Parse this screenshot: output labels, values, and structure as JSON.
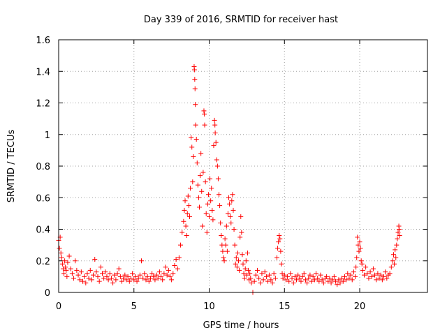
{
  "chart_data": {
    "type": "scatter",
    "title": "Day 339 of 2016, SRMTID for receiver hast",
    "xlabel": "GPS time / hours",
    "ylabel": "SRMTID / TECUs",
    "xlim": [
      0,
      24.5
    ],
    "ylim": [
      0,
      1.6
    ],
    "xticks": [
      0,
      5,
      10,
      15,
      20
    ],
    "xtick_labels": [
      "0",
      "5",
      "10",
      "15",
      "20"
    ],
    "yticks": [
      0,
      0.2,
      0.4,
      0.6,
      0.8,
      1.0,
      1.2,
      1.4,
      1.6
    ],
    "ytick_labels": [
      "0",
      "0.2",
      "0.4",
      "0.6",
      "0.8",
      "1",
      "1.2",
      "1.4",
      "1.6"
    ],
    "grid": true,
    "marker": "plus",
    "color": "#ff0000",
    "series": [
      {
        "name": "SRMTID",
        "points": [
          [
            0.0,
            0.33
          ],
          [
            0.05,
            0.28
          ],
          [
            0.1,
            0.35
          ],
          [
            0.15,
            0.25
          ],
          [
            0.2,
            0.22
          ],
          [
            0.25,
            0.18
          ],
          [
            0.3,
            0.15
          ],
          [
            0.35,
            0.12
          ],
          [
            0.4,
            0.2
          ],
          [
            0.45,
            0.16
          ],
          [
            0.5,
            0.14
          ],
          [
            0.55,
            0.1
          ],
          [
            0.6,
            0.19
          ],
          [
            0.7,
            0.23
          ],
          [
            0.8,
            0.15
          ],
          [
            0.9,
            0.12
          ],
          [
            1.0,
            0.09
          ],
          [
            1.1,
            0.2
          ],
          [
            1.2,
            0.14
          ],
          [
            1.3,
            0.11
          ],
          [
            1.4,
            0.08
          ],
          [
            1.5,
            0.13
          ],
          [
            1.6,
            0.07
          ],
          [
            1.7,
            0.1
          ],
          [
            1.8,
            0.06
          ],
          [
            1.9,
            0.12
          ],
          [
            2.0,
            0.09
          ],
          [
            2.1,
            0.14
          ],
          [
            2.2,
            0.08
          ],
          [
            2.3,
            0.11
          ],
          [
            2.4,
            0.21
          ],
          [
            2.5,
            0.13
          ],
          [
            2.6,
            0.1
          ],
          [
            2.7,
            0.07
          ],
          [
            2.8,
            0.16
          ],
          [
            2.9,
            0.12
          ],
          [
            3.0,
            0.09
          ],
          [
            3.1,
            0.13
          ],
          [
            3.2,
            0.1
          ],
          [
            3.3,
            0.08
          ],
          [
            3.4,
            0.12
          ],
          [
            3.5,
            0.09
          ],
          [
            3.6,
            0.06
          ],
          [
            3.7,
            0.11
          ],
          [
            3.8,
            0.08
          ],
          [
            3.9,
            0.12
          ],
          [
            4.0,
            0.15
          ],
          [
            4.1,
            0.1
          ],
          [
            4.2,
            0.07
          ],
          [
            4.3,
            0.09
          ],
          [
            4.4,
            0.11
          ],
          [
            4.5,
            0.08
          ],
          [
            4.6,
            0.1
          ],
          [
            4.7,
            0.07
          ],
          [
            4.8,
            0.09
          ],
          [
            4.9,
            0.12
          ],
          [
            5.0,
            0.08
          ],
          [
            5.1,
            0.1
          ],
          [
            5.2,
            0.07
          ],
          [
            5.3,
            0.09
          ],
          [
            5.4,
            0.11
          ],
          [
            5.5,
            0.2
          ],
          [
            5.6,
            0.09
          ],
          [
            5.7,
            0.12
          ],
          [
            5.8,
            0.08
          ],
          [
            5.9,
            0.1
          ],
          [
            6.0,
            0.07
          ],
          [
            6.1,
            0.09
          ],
          [
            6.2,
            0.12
          ],
          [
            6.3,
            0.1
          ],
          [
            6.4,
            0.08
          ],
          [
            6.5,
            0.11
          ],
          [
            6.6,
            0.09
          ],
          [
            6.7,
            0.13
          ],
          [
            6.8,
            0.1
          ],
          [
            6.9,
            0.08
          ],
          [
            7.0,
            0.12
          ],
          [
            7.1,
            0.16
          ],
          [
            7.2,
            0.11
          ],
          [
            7.3,
            0.14
          ],
          [
            7.4,
            0.1
          ],
          [
            7.5,
            0.08
          ],
          [
            7.6,
            0.12
          ],
          [
            7.7,
            0.17
          ],
          [
            7.8,
            0.21
          ],
          [
            7.9,
            0.15
          ],
          [
            8.0,
            0.22
          ],
          [
            8.1,
            0.3
          ],
          [
            8.2,
            0.38
          ],
          [
            8.3,
            0.45
          ],
          [
            8.35,
            0.52
          ],
          [
            8.4,
            0.58
          ],
          [
            8.45,
            0.42
          ],
          [
            8.5,
            0.36
          ],
          [
            8.55,
            0.5
          ],
          [
            8.6,
            0.61
          ],
          [
            8.65,
            0.55
          ],
          [
            8.7,
            0.48
          ],
          [
            8.75,
            0.66
          ],
          [
            8.8,
            0.98
          ],
          [
            8.85,
            0.92
          ],
          [
            8.9,
            0.7
          ],
          [
            8.95,
            0.86
          ],
          [
            9.0,
            1.43
          ],
          [
            9.02,
            1.41
          ],
          [
            9.04,
            1.35
          ],
          [
            9.06,
            1.29
          ],
          [
            9.08,
            1.19
          ],
          [
            9.1,
            1.06
          ],
          [
            9.15,
            0.97
          ],
          [
            9.2,
            0.82
          ],
          [
            9.25,
            0.68
          ],
          [
            9.3,
            0.6
          ],
          [
            9.35,
            0.54
          ],
          [
            9.4,
            0.74
          ],
          [
            9.45,
            0.88
          ],
          [
            9.5,
            0.64
          ],
          [
            9.55,
            0.42
          ],
          [
            9.6,
            0.76
          ],
          [
            9.65,
            1.15
          ],
          [
            9.68,
            1.13
          ],
          [
            9.7,
            1.06
          ],
          [
            9.75,
            0.7
          ],
          [
            9.8,
            0.5
          ],
          [
            9.85,
            0.38
          ],
          [
            9.9,
            0.56
          ],
          [
            9.95,
            0.62
          ],
          [
            10.0,
            0.48
          ],
          [
            10.05,
            0.72
          ],
          [
            10.1,
            0.58
          ],
          [
            10.15,
            0.66
          ],
          [
            10.2,
            0.52
          ],
          [
            10.25,
            0.46
          ],
          [
            10.3,
            0.93
          ],
          [
            10.35,
            1.09
          ],
          [
            10.38,
            1.06
          ],
          [
            10.4,
            1.01
          ],
          [
            10.45,
            0.95
          ],
          [
            10.5,
            0.84
          ],
          [
            10.55,
            0.8
          ],
          [
            10.6,
            0.72
          ],
          [
            10.65,
            0.62
          ],
          [
            10.7,
            0.55
          ],
          [
            10.75,
            0.44
          ],
          [
            10.8,
            0.36
          ],
          [
            10.85,
            0.3
          ],
          [
            10.9,
            0.26
          ],
          [
            10.95,
            0.22
          ],
          [
            11.0,
            0.2
          ],
          [
            11.05,
            0.34
          ],
          [
            11.1,
            0.3
          ],
          [
            11.15,
            0.42
          ],
          [
            11.2,
            0.26
          ],
          [
            11.25,
            0.5
          ],
          [
            11.3,
            0.6
          ],
          [
            11.35,
            0.56
          ],
          [
            11.4,
            0.48
          ],
          [
            11.45,
            0.44
          ],
          [
            11.5,
            0.58
          ],
          [
            11.55,
            0.62
          ],
          [
            11.6,
            0.52
          ],
          [
            11.65,
            0.4
          ],
          [
            11.7,
            0.3
          ],
          [
            11.75,
            0.18
          ],
          [
            11.8,
            0.22
          ],
          [
            11.85,
            0.16
          ],
          [
            11.9,
            0.25
          ],
          [
            11.95,
            0.2
          ],
          [
            12.0,
            0.14
          ],
          [
            12.05,
            0.35
          ],
          [
            12.1,
            0.48
          ],
          [
            12.15,
            0.38
          ],
          [
            12.2,
            0.24
          ],
          [
            12.25,
            0.18
          ],
          [
            12.3,
            0.12
          ],
          [
            12.35,
            0.09
          ],
          [
            12.4,
            0.15
          ],
          [
            12.45,
            0.2
          ],
          [
            12.5,
            0.11
          ],
          [
            12.55,
            0.25
          ],
          [
            12.6,
            0.14
          ],
          [
            12.65,
            0.08
          ],
          [
            12.7,
            0.12
          ],
          [
            12.75,
            0.09
          ],
          [
            12.8,
            0.06
          ],
          [
            12.9,
            0.0
          ],
          [
            13.0,
            0.07
          ],
          [
            13.1,
            0.11
          ],
          [
            13.2,
            0.14
          ],
          [
            13.3,
            0.09
          ],
          [
            13.4,
            0.06
          ],
          [
            13.5,
            0.12
          ],
          [
            13.6,
            0.08
          ],
          [
            13.7,
            0.13
          ],
          [
            13.8,
            0.1
          ],
          [
            13.9,
            0.07
          ],
          [
            14.0,
            0.11
          ],
          [
            14.1,
            0.08
          ],
          [
            14.2,
            0.06
          ],
          [
            14.3,
            0.12
          ],
          [
            14.4,
            0.09
          ],
          [
            14.5,
            0.22
          ],
          [
            14.55,
            0.28
          ],
          [
            14.6,
            0.32
          ],
          [
            14.65,
            0.36
          ],
          [
            14.7,
            0.34
          ],
          [
            14.75,
            0.26
          ],
          [
            14.8,
            0.18
          ],
          [
            14.85,
            0.12
          ],
          [
            14.9,
            0.09
          ],
          [
            15.0,
            0.11
          ],
          [
            15.1,
            0.08
          ],
          [
            15.2,
            0.1
          ],
          [
            15.3,
            0.07
          ],
          [
            15.4,
            0.12
          ],
          [
            15.5,
            0.09
          ],
          [
            15.6,
            0.06
          ],
          [
            15.7,
            0.1
          ],
          [
            15.8,
            0.08
          ],
          [
            15.9,
            0.11
          ],
          [
            16.0,
            0.09
          ],
          [
            16.1,
            0.07
          ],
          [
            16.2,
            0.1
          ],
          [
            16.3,
            0.12
          ],
          [
            16.4,
            0.08
          ],
          [
            16.5,
            0.06
          ],
          [
            16.6,
            0.09
          ],
          [
            16.7,
            0.11
          ],
          [
            16.8,
            0.07
          ],
          [
            16.9,
            0.1
          ],
          [
            17.0,
            0.08
          ],
          [
            17.1,
            0.12
          ],
          [
            17.2,
            0.09
          ],
          [
            17.3,
            0.07
          ],
          [
            17.4,
            0.11
          ],
          [
            17.5,
            0.08
          ],
          [
            17.6,
            0.06
          ],
          [
            17.7,
            0.09
          ],
          [
            17.8,
            0.1
          ],
          [
            17.9,
            0.07
          ],
          [
            18.0,
            0.09
          ],
          [
            18.1,
            0.06
          ],
          [
            18.2,
            0.08
          ],
          [
            18.3,
            0.1
          ],
          [
            18.4,
            0.07
          ],
          [
            18.5,
            0.05
          ],
          [
            18.6,
            0.08
          ],
          [
            18.7,
            0.06
          ],
          [
            18.8,
            0.09
          ],
          [
            18.9,
            0.07
          ],
          [
            19.0,
            0.1
          ],
          [
            19.1,
            0.08
          ],
          [
            19.2,
            0.12
          ],
          [
            19.3,
            0.09
          ],
          [
            19.4,
            0.11
          ],
          [
            19.5,
            0.08
          ],
          [
            19.6,
            0.13
          ],
          [
            19.7,
            0.1
          ],
          [
            19.75,
            0.16
          ],
          [
            19.8,
            0.22
          ],
          [
            19.85,
            0.35
          ],
          [
            19.9,
            0.3
          ],
          [
            19.95,
            0.26
          ],
          [
            20.0,
            0.32
          ],
          [
            20.05,
            0.28
          ],
          [
            20.1,
            0.2
          ],
          [
            20.15,
            0.18
          ],
          [
            20.2,
            0.14
          ],
          [
            20.3,
            0.11
          ],
          [
            20.4,
            0.16
          ],
          [
            20.5,
            0.12
          ],
          [
            20.6,
            0.09
          ],
          [
            20.7,
            0.13
          ],
          [
            20.8,
            0.1
          ],
          [
            20.9,
            0.15
          ],
          [
            21.0,
            0.11
          ],
          [
            21.1,
            0.08
          ],
          [
            21.2,
            0.12
          ],
          [
            21.3,
            0.09
          ],
          [
            21.4,
            0.11
          ],
          [
            21.5,
            0.08
          ],
          [
            21.6,
            0.1
          ],
          [
            21.7,
            0.13
          ],
          [
            21.8,
            0.09
          ],
          [
            21.9,
            0.11
          ],
          [
            22.0,
            0.12
          ],
          [
            22.1,
            0.16
          ],
          [
            22.2,
            0.2
          ],
          [
            22.25,
            0.24
          ],
          [
            22.3,
            0.18
          ],
          [
            22.35,
            0.27
          ],
          [
            22.4,
            0.22
          ],
          [
            22.45,
            0.3
          ],
          [
            22.5,
            0.34
          ],
          [
            22.55,
            0.38
          ],
          [
            22.6,
            0.42
          ],
          [
            22.62,
            0.4
          ],
          [
            22.65,
            0.36
          ]
        ]
      }
    ]
  }
}
